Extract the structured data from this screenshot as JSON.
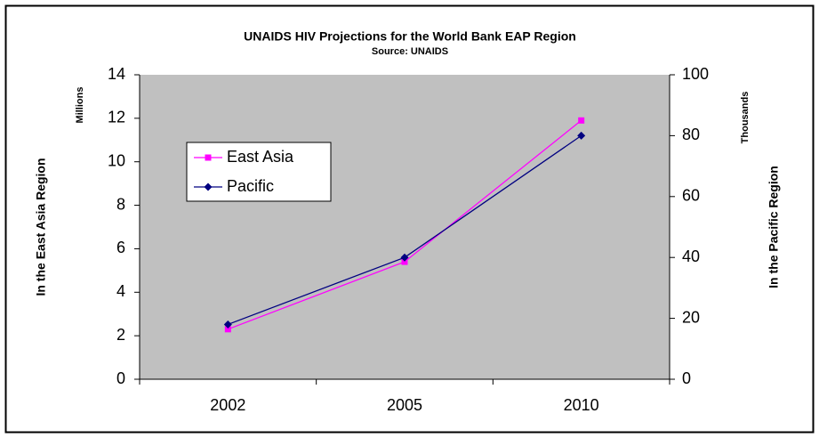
{
  "chart_data": {
    "type": "line",
    "title": "UNAIDS HIV Projections for the World Bank EAP Region",
    "subtitle": "Source: UNAIDS",
    "y_label": "In the East Asia  Region",
    "y_unit": "Millions",
    "y2_label": "In the Pacific Region",
    "y2_unit": "Thousands",
    "categories": [
      "2002",
      "2005",
      "2010"
    ],
    "series": [
      {
        "name": "East Asia",
        "color": "#ff00ff",
        "values": [
          2.3,
          5.4,
          11.9
        ]
      },
      {
        "name": "Pacific",
        "color": "#000080",
        "axis": "y2",
        "values": [
          18,
          40,
          80
        ]
      }
    ],
    "ylim": [
      0,
      14
    ],
    "yticks": [
      0,
      2,
      4,
      6,
      8,
      10,
      12,
      14
    ],
    "y2lim": [
      0,
      100
    ],
    "y2ticks": [
      0,
      20,
      40,
      60,
      80,
      100
    ]
  }
}
